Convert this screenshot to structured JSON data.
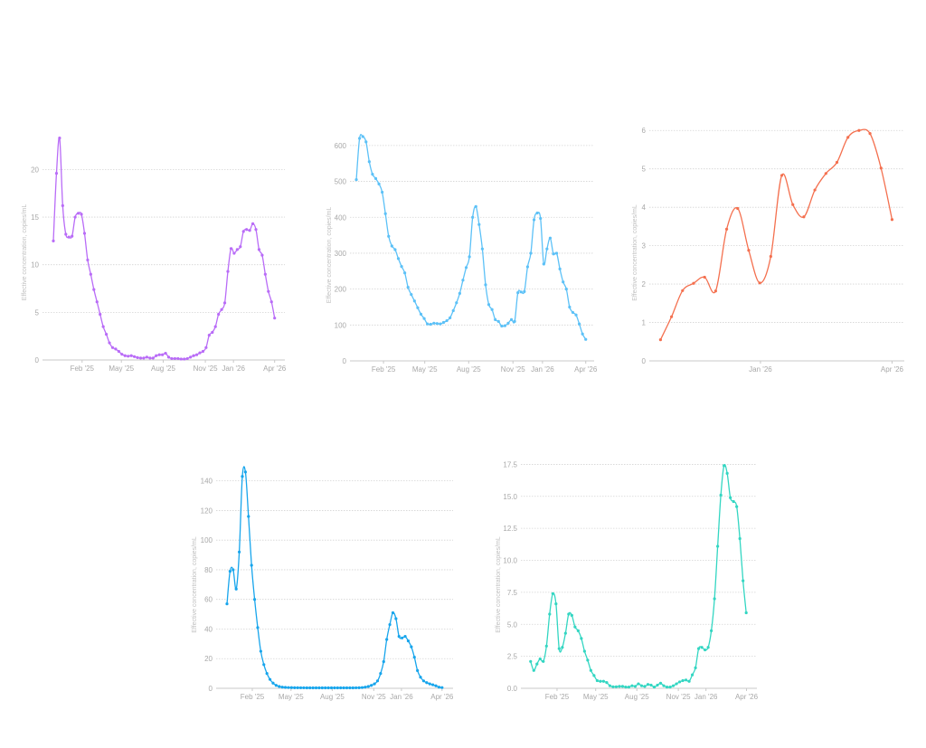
{
  "chart_data": [
    {
      "type": "line",
      "title": "",
      "xlabel": "",
      "ylabel": "Effective concentration, copies/mL",
      "x_units": "weeks since Dec 1 '24",
      "xlim": [
        -3.4,
        72.5
      ],
      "ylim": [
        0,
        24.5
      ],
      "yticks": [
        0,
        5,
        10,
        15,
        20
      ],
      "ytick_labels": [
        "0",
        "5",
        "10",
        "15",
        "20"
      ],
      "xticks": [
        {
          "label": "Feb '25",
          "x": 9.0
        },
        {
          "label": "May '25",
          "x": 21.3
        },
        {
          "label": "Aug '25",
          "x": 34.4
        },
        {
          "label": "Nov '25",
          "x": 47.6
        },
        {
          "label": "Jan '26",
          "x": 56.4
        },
        {
          "label": "Apr '26",
          "x": 69.3
        }
      ],
      "grid": true,
      "color": "#b96cf7",
      "smooth": false,
      "series": [
        {
          "name": "Effective concentration",
          "x_start": 0,
          "x_end": 69.3,
          "values": [
            12.5,
            19.6,
            23.3,
            16.2,
            13.2,
            12.9,
            13.0,
            15.0,
            15.4,
            15.3,
            13.3,
            10.5,
            9.0,
            7.4,
            6.1,
            4.8,
            3.5,
            2.7,
            1.8,
            1.3,
            1.15,
            0.9,
            0.6,
            0.45,
            0.4,
            0.45,
            0.35,
            0.25,
            0.2,
            0.2,
            0.3,
            0.2,
            0.2,
            0.45,
            0.55,
            0.55,
            0.7,
            0.3,
            0.15,
            0.15,
            0.15,
            0.1,
            0.1,
            0.15,
            0.3,
            0.45,
            0.55,
            0.75,
            0.9,
            1.3,
            2.6,
            2.9,
            3.5,
            4.8,
            5.3,
            6.0,
            9.3,
            11.7,
            11.2,
            11.6,
            11.9,
            13.5,
            13.7,
            13.6,
            14.3,
            13.7,
            11.6,
            11.0,
            9.0,
            7.2,
            6.1,
            4.4
          ]
        }
      ]
    },
    {
      "type": "line",
      "title": "",
      "xlabel": "",
      "ylabel": "Effective concentration, copies/mL",
      "x_units": "weeks since Dec 1 '24",
      "xlim": [
        -1.0,
        71.8
      ],
      "ylim": [
        0,
        640
      ],
      "yticks": [
        0,
        100,
        200,
        300,
        400,
        500,
        600
      ],
      "ytick_labels": [
        "0",
        "100",
        "200",
        "300",
        "400",
        "500",
        "600"
      ],
      "xticks": [
        {
          "label": "Feb '25",
          "x": 9.0
        },
        {
          "label": "May '25",
          "x": 21.3
        },
        {
          "label": "Aug '25",
          "x": 34.4
        },
        {
          "label": "Nov '25",
          "x": 47.6
        },
        {
          "label": "Jan '26",
          "x": 56.4
        },
        {
          "label": "Apr '26",
          "x": 69.3
        }
      ],
      "grid": true,
      "color": "#5cc1f7",
      "smooth": false,
      "series": [
        {
          "name": "Effective concentration",
          "x_start": 0.9,
          "x_end": 69.3,
          "values": [
            505,
            620,
            625,
            610,
            555,
            520,
            508,
            493,
            470,
            410,
            347,
            320,
            310,
            285,
            263,
            245,
            205,
            185,
            167,
            148,
            130,
            118,
            103,
            102,
            105,
            104,
            103,
            107,
            112,
            120,
            140,
            162,
            188,
            225,
            260,
            290,
            400,
            430,
            380,
            312,
            212,
            157,
            143,
            115,
            110,
            97,
            98,
            105,
            115,
            110,
            190,
            192,
            193,
            262,
            300,
            393,
            412,
            397,
            270,
            312,
            342,
            298,
            300,
            256,
            220,
            200,
            150,
            135,
            128,
            103,
            75,
            60
          ]
        }
      ]
    },
    {
      "type": "line",
      "title": "",
      "xlabel": "",
      "ylabel": "Effective concentration, copies/mL",
      "x_units": "weeks since Dec 1 '24",
      "xlim": [
        45.5,
        70.5
      ],
      "ylim": [
        0,
        6.1
      ],
      "yticks": [
        0,
        1,
        2,
        3,
        4,
        5,
        6
      ],
      "ytick_labels": [
        "0",
        "1",
        "2",
        "3",
        "4",
        "5",
        "6"
      ],
      "xticks": [
        {
          "label": "Jan '26",
          "x": 56.4
        },
        {
          "label": "Apr '26",
          "x": 69.3
        }
      ],
      "grid": true,
      "color": "#f4704f",
      "smooth": true,
      "series": [
        {
          "name": "Effective concentration",
          "x_start": 46.6,
          "x_end": 69.3,
          "values": [
            0.55,
            1.15,
            1.83,
            2.02,
            2.18,
            1.82,
            3.43,
            3.97,
            2.88,
            2.03,
            2.72,
            4.83,
            4.07,
            3.75,
            4.45,
            4.88,
            5.17,
            5.82,
            6.0,
            5.92,
            5.02,
            3.68
          ]
        }
      ]
    },
    {
      "type": "line",
      "title": "",
      "xlabel": "",
      "ylabel": "Effective concentration, copies/mL",
      "x_units": "weeks since Dec 1 '24",
      "xlim": [
        -2.5,
        72.8
      ],
      "ylim": [
        0,
        152
      ],
      "yticks": [
        0,
        20,
        40,
        60,
        80,
        100,
        120,
        140
      ],
      "ytick_labels": [
        "0",
        "20",
        "40",
        "60",
        "80",
        "100",
        "120",
        "140"
      ],
      "xticks": [
        {
          "label": "Feb '25",
          "x": 9.0
        },
        {
          "label": "May '25",
          "x": 21.3
        },
        {
          "label": "Aug '25",
          "x": 34.4
        },
        {
          "label": "Nov '25",
          "x": 47.6
        },
        {
          "label": "Jan '26",
          "x": 56.4
        },
        {
          "label": "Apr '26",
          "x": 69.3
        }
      ],
      "grid": true,
      "color": "#17a5ec",
      "smooth": false,
      "series": [
        {
          "name": "Effective concentration",
          "x_start": 0.95,
          "x_end": 69.3,
          "values": [
            57,
            79,
            80,
            67,
            92,
            143,
            146,
            116,
            83,
            60,
            41,
            25,
            16,
            10,
            6,
            3.5,
            2,
            1.2,
            0.8,
            0.6,
            0.5,
            0.45,
            0.4,
            0.4,
            0.35,
            0.35,
            0.3,
            0.3,
            0.3,
            0.3,
            0.3,
            0.3,
            0.3,
            0.3,
            0.3,
            0.3,
            0.3,
            0.3,
            0.3,
            0.3,
            0.3,
            0.3,
            0.35,
            0.4,
            0.5,
            0.8,
            1.2,
            2,
            3,
            5,
            10,
            18,
            33,
            43,
            51,
            47,
            35,
            34,
            35,
            32,
            28,
            21,
            12,
            7.5,
            5,
            3.8,
            3,
            2.4,
            1.7,
            0.8,
            0.5
          ]
        }
      ]
    },
    {
      "type": "line",
      "title": "",
      "xlabel": "",
      "ylabel": "Effective concentration, copies/mL",
      "x_units": "weeks since Dec 1 '24",
      "xlim": [
        -2.5,
        72.6
      ],
      "ylim": [
        0,
        17.6
      ],
      "yticks": [
        0,
        2.5,
        5,
        7.5,
        10,
        12.5,
        15,
        17.5
      ],
      "ytick_labels": [
        "0.0",
        "2.5",
        "5.0",
        "7.5",
        "10.0",
        "12.5",
        "15.0",
        "17.5"
      ],
      "xticks": [
        {
          "label": "Feb '25",
          "x": 9.0
        },
        {
          "label": "May '25",
          "x": 21.3
        },
        {
          "label": "Aug '25",
          "x": 34.4
        },
        {
          "label": "Nov '25",
          "x": 47.6
        },
        {
          "label": "Jan '26",
          "x": 56.4
        },
        {
          "label": "Apr '26",
          "x": 69.3
        }
      ],
      "grid": true,
      "color": "#33d6c2",
      "smooth": false,
      "series": [
        {
          "name": "Effective concentration",
          "x_start": 0.6,
          "x_end": 69.2,
          "values": [
            2.1,
            1.4,
            1.9,
            2.3,
            2.1,
            3.3,
            5.8,
            7.4,
            6.6,
            3.1,
            3.2,
            4.3,
            5.8,
            5.7,
            4.8,
            4.5,
            3.9,
            2.9,
            2.2,
            1.4,
            1.0,
            0.6,
            0.55,
            0.55,
            0.45,
            0.2,
            0.12,
            0.12,
            0.15,
            0.15,
            0.1,
            0.1,
            0.2,
            0.15,
            0.35,
            0.2,
            0.15,
            0.3,
            0.25,
            0.1,
            0.25,
            0.4,
            0.2,
            0.1,
            0.1,
            0.2,
            0.35,
            0.5,
            0.6,
            0.65,
            0.55,
            1.05,
            1.6,
            3.1,
            3.2,
            3.0,
            3.2,
            4.5,
            7.0,
            11.1,
            15.1,
            17.4,
            16.8,
            14.9,
            14.6,
            14.2,
            11.7,
            8.4,
            5.9
          ]
        }
      ]
    }
  ]
}
